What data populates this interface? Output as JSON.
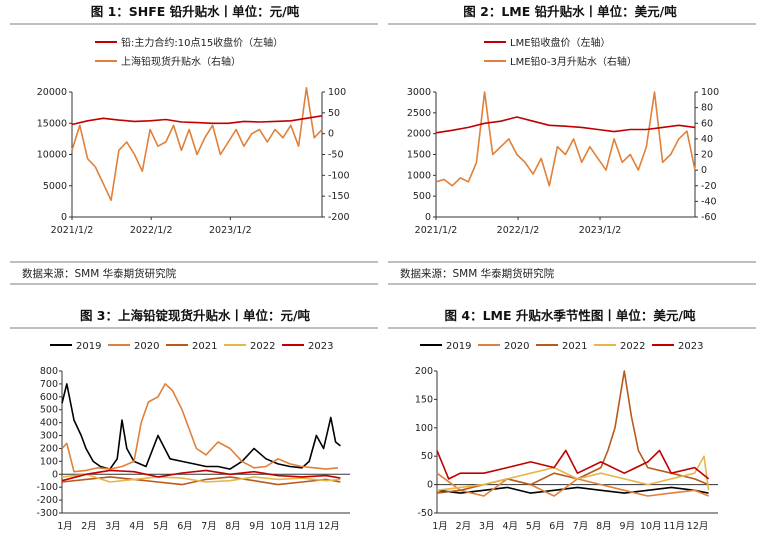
{
  "colors": {
    "red": "#c00000",
    "orange": "#e0803a",
    "black": "#000000",
    "brown": "#b85a1c",
    "tan": "#e8b54a",
    "rule": "#7f7f7f"
  },
  "source_text": "数据来源：SMM  华泰期货研究院",
  "chart_data": [
    {
      "type": "line",
      "title": "图 1：SHFE 铅升贴水丨单位：元/吨",
      "x_ticks": [
        "2021/1/2",
        "2022/1/2",
        "2023/1/2"
      ],
      "y_left": {
        "min": 0,
        "max": 20000,
        "ticks": [
          0,
          5000,
          10000,
          15000,
          20000
        ]
      },
      "y_right": {
        "min": -200,
        "max": 100,
        "ticks": [
          100,
          50,
          0,
          -50,
          -100,
          -150,
          -200
        ]
      },
      "grid": false,
      "legend_position": "top",
      "series": [
        {
          "name": "铅:主力合约:10点15收盘价（左轴）",
          "axis": "left",
          "color": "#c00000",
          "x": [
            0,
            2,
            4,
            6,
            8,
            10,
            12,
            14,
            16,
            18,
            20,
            22,
            24,
            26,
            28,
            30,
            32
          ],
          "values": [
            14800,
            15400,
            15800,
            15500,
            15300,
            15400,
            15600,
            15200,
            15100,
            15000,
            15000,
            15300,
            15200,
            15300,
            15400,
            15800,
            16200
          ]
        },
        {
          "name": "上海铅现货升贴水（右轴）",
          "axis": "right",
          "color": "#e0803a",
          "x": [
            0,
            1,
            2,
            3,
            4,
            5,
            6,
            7,
            8,
            9,
            10,
            11,
            12,
            13,
            14,
            15,
            16,
            17,
            18,
            19,
            20,
            21,
            22,
            23,
            24,
            25,
            26,
            27,
            28,
            29,
            30,
            31,
            32
          ],
          "values": [
            -40,
            20,
            -60,
            -80,
            -120,
            -160,
            -40,
            -20,
            -50,
            -90,
            10,
            -30,
            -20,
            20,
            -40,
            10,
            -50,
            -10,
            20,
            -50,
            -20,
            10,
            -30,
            0,
            10,
            -20,
            10,
            -10,
            20,
            -30,
            110,
            -10,
            10
          ]
        }
      ]
    },
    {
      "type": "line",
      "title": "图 2：LME 铅升贴水丨单位：美元/吨",
      "x_ticks": [
        "2021/1/2",
        "2022/1/2",
        "2023/1/2"
      ],
      "y_left": {
        "min": 0,
        "max": 3000,
        "ticks": [
          0,
          500,
          1000,
          1500,
          2000,
          2500,
          3000
        ]
      },
      "y_right": {
        "min": -60,
        "max": 100,
        "ticks": [
          100,
          80,
          60,
          40,
          20,
          0,
          -20,
          -40,
          -60
        ]
      },
      "grid": false,
      "legend_position": "top",
      "series": [
        {
          "name": "LME铅收盘价（左轴）",
          "axis": "left",
          "color": "#c00000",
          "x": [
            0,
            2,
            4,
            6,
            8,
            10,
            12,
            14,
            16,
            18,
            20,
            22,
            24,
            26,
            28,
            30,
            32
          ],
          "values": [
            2020,
            2080,
            2150,
            2250,
            2300,
            2400,
            2300,
            2200,
            2180,
            2150,
            2100,
            2050,
            2100,
            2100,
            2150,
            2200,
            2150
          ]
        },
        {
          "name": "LME铅0-3月升贴水（右轴）",
          "axis": "right",
          "color": "#e0803a",
          "x": [
            0,
            1,
            2,
            3,
            4,
            5,
            6,
            7,
            8,
            9,
            10,
            11,
            12,
            13,
            14,
            15,
            16,
            17,
            18,
            19,
            20,
            21,
            22,
            23,
            24,
            25,
            26,
            27,
            28,
            29,
            30,
            31,
            32
          ],
          "values": [
            -15,
            -12,
            -20,
            -10,
            -15,
            10,
            100,
            20,
            30,
            40,
            20,
            10,
            -5,
            15,
            -20,
            30,
            20,
            40,
            10,
            30,
            15,
            0,
            40,
            10,
            20,
            0,
            30,
            100,
            10,
            20,
            40,
            50,
            0
          ]
        }
      ]
    },
    {
      "type": "line",
      "title": "图 3：上海铅锭现货升贴水丨单位：元/吨",
      "x_ticks": [
        "1月",
        "2月",
        "3月",
        "4月",
        "5月",
        "6月",
        "7月",
        "8月",
        "9月",
        "10月",
        "11月",
        "12月"
      ],
      "y": {
        "min": -300,
        "max": 800,
        "ticks": [
          800,
          700,
          600,
          500,
          400,
          300,
          200,
          100,
          0,
          -100,
          -200,
          -300
        ]
      },
      "grid": false,
      "legend_position": "top",
      "series": [
        {
          "name": "2019",
          "color": "#000000",
          "x": [
            0,
            0.2,
            0.5,
            0.8,
            1,
            1.3,
            1.6,
            2,
            2.3,
            2.5,
            2.7,
            3,
            3.5,
            4,
            4.5,
            5,
            5.5,
            6,
            6.5,
            7,
            7.5,
            8,
            8.5,
            9,
            9.5,
            10,
            10.3,
            10.6,
            10.9,
            11.2,
            11.4,
            11.6
          ],
          "values": [
            550,
            700,
            420,
            300,
            200,
            100,
            60,
            40,
            120,
            420,
            200,
            100,
            60,
            300,
            120,
            100,
            80,
            60,
            60,
            40,
            100,
            200,
            120,
            80,
            60,
            50,
            100,
            300,
            200,
            440,
            250,
            220
          ]
        },
        {
          "name": "2020",
          "color": "#e0803a",
          "x": [
            0,
            0.2,
            0.5,
            1,
            1.5,
            2,
            2.5,
            3,
            3.3,
            3.6,
            4,
            4.3,
            4.6,
            5,
            5.3,
            5.6,
            6,
            6.5,
            7,
            7.5,
            8,
            8.5,
            9,
            9.5,
            10,
            10.5,
            11,
            11.5
          ],
          "values": [
            200,
            240,
            20,
            30,
            50,
            40,
            60,
            100,
            400,
            560,
            600,
            700,
            650,
            500,
            350,
            200,
            150,
            250,
            200,
            100,
            50,
            60,
            120,
            80,
            60,
            50,
            40,
            50
          ]
        },
        {
          "name": "2021",
          "color": "#b85a1c",
          "x": [
            0,
            1,
            2,
            3,
            4,
            5,
            6,
            7,
            8,
            9,
            10,
            11,
            11.6
          ],
          "values": [
            -60,
            -40,
            -20,
            -40,
            -60,
            -80,
            -40,
            -20,
            -50,
            -80,
            -60,
            -40,
            -60
          ]
        },
        {
          "name": "2022",
          "color": "#e8b54a",
          "x": [
            0,
            1,
            2,
            3,
            4,
            5,
            6,
            7,
            8,
            9,
            10,
            11,
            11.6
          ],
          "values": [
            -20,
            0,
            -60,
            -40,
            -20,
            -30,
            -60,
            -50,
            -20,
            -40,
            -30,
            -50,
            -40
          ]
        },
        {
          "name": "2023",
          "color": "#c00000",
          "x": [
            0,
            1,
            2,
            3,
            4,
            5,
            6,
            7,
            8,
            9,
            10,
            11,
            11.6
          ],
          "values": [
            -50,
            0,
            30,
            20,
            -20,
            10,
            30,
            0,
            20,
            -10,
            -20,
            -10,
            -30
          ]
        }
      ]
    },
    {
      "type": "line",
      "title": "图 4：LME 升贴水季节性图丨单位：美元/吨",
      "x_ticks": [
        "1月",
        "2月",
        "3月",
        "4月",
        "5月",
        "6月",
        "7月",
        "8月",
        "9月",
        "10月",
        "11月",
        "12月"
      ],
      "y": {
        "min": -50,
        "max": 200,
        "ticks": [
          200,
          150,
          100,
          50,
          0,
          -50
        ]
      },
      "grid": false,
      "legend_position": "top",
      "series": [
        {
          "name": "2019",
          "color": "#000000",
          "x": [
            0,
            1,
            2,
            3,
            4,
            5,
            6,
            7,
            8,
            9,
            10,
            11,
            11.6
          ],
          "values": [
            -10,
            -15,
            -10,
            -5,
            -15,
            -10,
            -5,
            -10,
            -15,
            -10,
            -5,
            -10,
            -15
          ]
        },
        {
          "name": "2020",
          "color": "#e0803a",
          "x": [
            0,
            1,
            2,
            3,
            4,
            5,
            6,
            7,
            8,
            9,
            10,
            11,
            11.6
          ],
          "values": [
            20,
            -10,
            -20,
            10,
            0,
            -20,
            10,
            0,
            -10,
            -20,
            -15,
            -10,
            -20
          ]
        },
        {
          "name": "2021",
          "color": "#b85a1c",
          "x": [
            0,
            1,
            2,
            3,
            4,
            5,
            6,
            7,
            7.3,
            7.6,
            8,
            8.3,
            8.6,
            9,
            10,
            11,
            11.6
          ],
          "values": [
            -15,
            -10,
            0,
            10,
            0,
            20,
            10,
            30,
            60,
            100,
            200,
            120,
            60,
            30,
            20,
            10,
            0
          ]
        },
        {
          "name": "2022",
          "color": "#e8b54a",
          "x": [
            0,
            1,
            2,
            3,
            4,
            5,
            6,
            7,
            8,
            9,
            10,
            11,
            11.4,
            11.6
          ],
          "values": [
            -10,
            -5,
            0,
            10,
            20,
            30,
            10,
            20,
            10,
            0,
            10,
            20,
            50,
            -10
          ]
        },
        {
          "name": "2023",
          "color": "#c00000",
          "x": [
            0,
            0.5,
            1,
            2,
            3,
            4,
            5,
            5.5,
            6,
            7,
            8,
            9,
            9.5,
            10,
            11,
            11.6
          ],
          "values": [
            60,
            10,
            20,
            20,
            30,
            40,
            30,
            60,
            20,
            40,
            20,
            40,
            60,
            20,
            30,
            10
          ]
        }
      ]
    }
  ]
}
